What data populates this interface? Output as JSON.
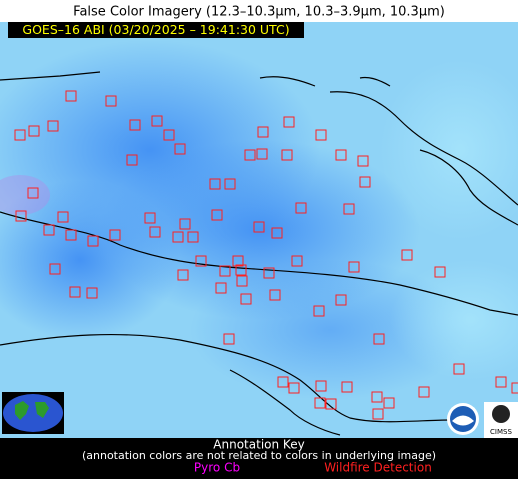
{
  "header": {
    "title": "False Color Imagery (12.3–10.3µm, 10.3–3.9µm, 10.3µm)",
    "timestamp": "GOES–16 ABI (03/20/2025 – 19:41:30 UTC)"
  },
  "key": {
    "title": "Annotation Key",
    "note": "(annotation colors are not related to colors in underlying image)",
    "items": [
      {
        "label": "Pyro Cb",
        "color": "#ff00ff"
      },
      {
        "label": "Wildfire Detection",
        "color": "#ff2020"
      }
    ]
  }
}
